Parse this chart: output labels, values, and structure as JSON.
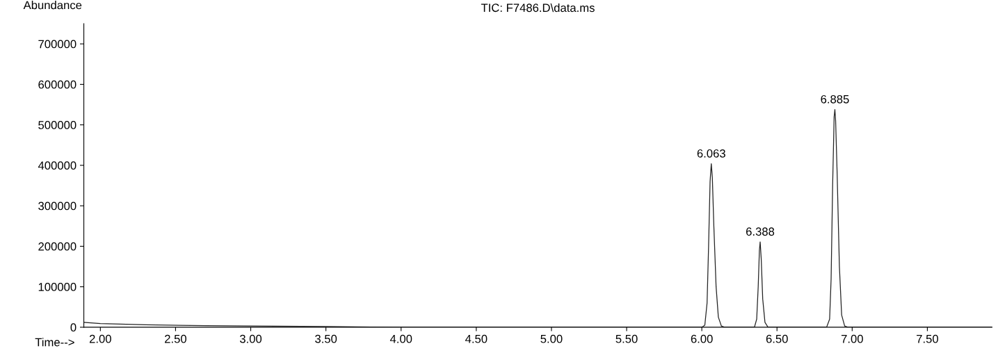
{
  "chart_data": {
    "type": "line",
    "title": "TIC: F7486.D\\data.ms",
    "xlabel": "Time-->",
    "ylabel": "Abundance",
    "series": [
      {
        "color": "#222222",
        "x": [
          1.89,
          2.0,
          2.3,
          2.7,
          3.0,
          3.5,
          3.8,
          4.0,
          6.0,
          6.02,
          6.035,
          6.045,
          6.055,
          6.063,
          6.07,
          6.08,
          6.095,
          6.11,
          6.13,
          6.15,
          6.35,
          6.365,
          6.375,
          6.383,
          6.388,
          6.395,
          6.405,
          6.42,
          6.44,
          6.83,
          6.85,
          6.86,
          6.87,
          6.88,
          6.885,
          6.89,
          6.9,
          6.915,
          6.93,
          6.95,
          6.97,
          7.93
        ],
        "values": [
          12000,
          9000,
          6000,
          4000,
          3000,
          2000,
          500,
          0,
          0,
          5000,
          60000,
          200000,
          360000,
          404000,
          370000,
          250000,
          100000,
          25000,
          3000,
          0,
          0,
          20000,
          100000,
          190000,
          211000,
          170000,
          70000,
          12000,
          0,
          0,
          20000,
          120000,
          350000,
          520000,
          538000,
          510000,
          380000,
          150000,
          30000,
          3000,
          0,
          0
        ]
      }
    ],
    "xlim": [
      1.89,
      7.93
    ],
    "ylim": [
      0,
      750000
    ],
    "xticks": [
      {
        "value": 2.0,
        "label": "2.00"
      },
      {
        "value": 2.5,
        "label": "2.50"
      },
      {
        "value": 3.0,
        "label": "3.00"
      },
      {
        "value": 3.5,
        "label": "3.50"
      },
      {
        "value": 4.0,
        "label": "4.00"
      },
      {
        "value": 4.5,
        "label": "4.50"
      },
      {
        "value": 5.0,
        "label": "5.00"
      },
      {
        "value": 5.5,
        "label": "5.50"
      },
      {
        "value": 6.0,
        "label": "6.00"
      },
      {
        "value": 6.5,
        "label": "6.50"
      },
      {
        "value": 7.0,
        "label": "7.00"
      },
      {
        "value": 7.5,
        "label": "7.50"
      }
    ],
    "yticks": [
      0,
      100000,
      200000,
      300000,
      400000,
      500000,
      600000,
      700000
    ],
    "annotations": [
      {
        "text": "6.063",
        "x": 6.063,
        "y": 404000
      },
      {
        "text": "6.388",
        "x": 6.388,
        "y": 211000
      },
      {
        "text": "6.885",
        "x": 6.885,
        "y": 538000
      }
    ],
    "grid": false,
    "legend": false,
    "marker": "none",
    "line_style": "solid"
  }
}
